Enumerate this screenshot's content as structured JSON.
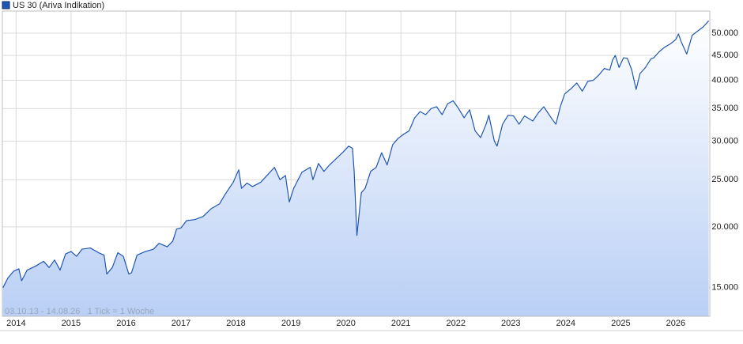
{
  "chart_data": {
    "type": "area",
    "log_scale": true,
    "grid": true,
    "subtitle": "03.10.13 - 14.08.26   1 Tick = 1 Woche",
    "xlim": [
      2013.75,
      2026.62
    ],
    "xticks": [
      2014,
      2015,
      2016,
      2017,
      2018,
      2019,
      2020,
      2021,
      2022,
      2023,
      2024,
      2025,
      2026
    ],
    "ylim": [
      13100,
      55500
    ],
    "yticks": [
      {
        "value": 15000,
        "label": "15.000"
      },
      {
        "value": 20000,
        "label": "20.000"
      },
      {
        "value": 25000,
        "label": "25.000"
      },
      {
        "value": 30000,
        "label": "30.000"
      },
      {
        "value": 35000,
        "label": "35.000"
      },
      {
        "value": 40000,
        "label": "40.000"
      },
      {
        "value": 45000,
        "label": "45.000"
      },
      {
        "value": 50000,
        "label": "50.000"
      }
    ],
    "x": [
      2013.76,
      2013.85,
      2013.95,
      2014.05,
      2014.1,
      2014.2,
      2014.35,
      2014.5,
      2014.6,
      2014.7,
      2014.8,
      2014.9,
      2015.0,
      2015.1,
      2015.2,
      2015.35,
      2015.5,
      2015.6,
      2015.65,
      2015.75,
      2015.85,
      2015.95,
      2016.05,
      2016.1,
      2016.2,
      2016.35,
      2016.5,
      2016.6,
      2016.75,
      2016.85,
      2016.92,
      2017.0,
      2017.1,
      2017.25,
      2017.4,
      2017.55,
      2017.7,
      2017.8,
      2017.95,
      2018.05,
      2018.1,
      2018.2,
      2018.3,
      2018.45,
      2018.55,
      2018.7,
      2018.8,
      2018.9,
      2018.97,
      2019.05,
      2019.2,
      2019.35,
      2019.4,
      2019.5,
      2019.6,
      2019.7,
      2019.85,
      2019.95,
      2020.05,
      2020.12,
      2020.15,
      2020.2,
      2020.28,
      2020.35,
      2020.45,
      2020.55,
      2020.65,
      2020.75,
      2020.85,
      2020.95,
      2021.05,
      2021.15,
      2021.25,
      2021.35,
      2021.45,
      2021.55,
      2021.65,
      2021.75,
      2021.85,
      2021.95,
      2022.05,
      2022.15,
      2022.25,
      2022.35,
      2022.45,
      2022.55,
      2022.6,
      2022.7,
      2022.75,
      2022.85,
      2022.95,
      2023.05,
      2023.15,
      2023.25,
      2023.4,
      2023.5,
      2023.6,
      2023.75,
      2023.82,
      2023.9,
      2023.98,
      2024.1,
      2024.2,
      2024.3,
      2024.4,
      2024.5,
      2024.6,
      2024.7,
      2024.8,
      2024.85,
      2024.9,
      2024.97,
      2025.05,
      2025.12,
      2025.2,
      2025.28,
      2025.35,
      2025.45,
      2025.55,
      2025.6,
      2025.7,
      2025.8,
      2025.9,
      2026.0,
      2026.05,
      2026.1,
      2026.2,
      2026.3,
      2026.4,
      2026.5,
      2026.6
    ],
    "series": [
      {
        "name": "US 30 (Ariva Indikation)",
        "color": "#1f56b3",
        "values": [
          15000,
          15700,
          16200,
          16400,
          15500,
          16300,
          16600,
          17000,
          16500,
          17100,
          16300,
          17600,
          17800,
          17400,
          18000,
          18100,
          17700,
          17500,
          16000,
          16500,
          17700,
          17400,
          16000,
          16100,
          17500,
          17800,
          18000,
          18500,
          18200,
          18700,
          19800,
          19900,
          20600,
          20700,
          21000,
          21800,
          22300,
          23300,
          24700,
          26200,
          24000,
          24600,
          24200,
          24700,
          25400,
          26500,
          25000,
          25500,
          22500,
          24000,
          25900,
          26500,
          25000,
          27000,
          26000,
          26800,
          27800,
          28500,
          29300,
          29000,
          26000,
          19200,
          23500,
          24000,
          26000,
          26500,
          28400,
          26800,
          29500,
          30400,
          31000,
          31500,
          33500,
          34500,
          34000,
          35000,
          35300,
          34000,
          35800,
          36300,
          35000,
          33500,
          34800,
          31500,
          30500,
          32500,
          33900,
          30000,
          29300,
          32500,
          33900,
          33800,
          32500,
          33800,
          33000,
          34300,
          35300,
          33300,
          32500,
          35300,
          37500,
          38500,
          39500,
          38000,
          39800,
          40000,
          41000,
          42300,
          42000,
          44000,
          45000,
          42500,
          44500,
          44400,
          42000,
          38300,
          41300,
          42500,
          44300,
          44500,
          45800,
          46800,
          47500,
          48500,
          49800,
          48000,
          45300,
          49500,
          50500,
          51500,
          53000
        ]
      }
    ]
  }
}
